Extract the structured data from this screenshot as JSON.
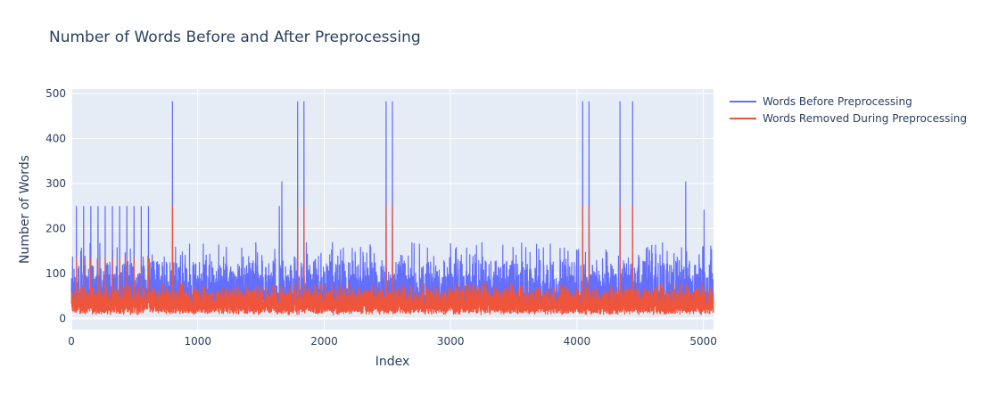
{
  "chart_data": {
    "type": "line",
    "title": "Number of Words Before and After Preprocessing",
    "xlabel": "Index",
    "ylabel": "Number of Words",
    "xlim": [
      0,
      5080
    ],
    "ylim": [
      -25,
      510
    ],
    "x_ticks": [
      0,
      1000,
      2000,
      3000,
      4000,
      5000
    ],
    "x_tick_labels": [
      "0",
      "1000",
      "2000",
      "3000",
      "4000",
      "5000"
    ],
    "y_ticks": [
      0,
      100,
      200,
      300,
      400,
      500
    ],
    "y_tick_labels": [
      "0",
      "100",
      "200",
      "300",
      "400",
      "500"
    ],
    "grid": true,
    "legend_position": "top-right",
    "n_points": 5080,
    "series": [
      {
        "name": "Words Before Preprocessing",
        "color": "#636efa",
        "typical_range": [
          0,
          170
        ],
        "spikes": [
          {
            "x": 800,
            "y": 483
          },
          {
            "x": 1645,
            "y": 250
          },
          {
            "x": 1665,
            "y": 305
          },
          {
            "x": 1790,
            "y": 483
          },
          {
            "x": 1840,
            "y": 483
          },
          {
            "x": 2490,
            "y": 483
          },
          {
            "x": 2540,
            "y": 483
          },
          {
            "x": 4045,
            "y": 483
          },
          {
            "x": 4095,
            "y": 483
          },
          {
            "x": 4340,
            "y": 483
          },
          {
            "x": 4440,
            "y": 483
          },
          {
            "x": 4860,
            "y": 305
          },
          {
            "x": 5005,
            "y": 242
          }
        ],
        "periodic_peaks": {
          "start": 40,
          "end": 610,
          "step": 57,
          "value": 250
        }
      },
      {
        "name": "Words Removed During Preprocessing",
        "color": "#ef553b",
        "typical_range": [
          0,
          80
        ],
        "spikes": [
          {
            "x": 800,
            "y": 252
          },
          {
            "x": 1790,
            "y": 252
          },
          {
            "x": 1840,
            "y": 252
          },
          {
            "x": 2490,
            "y": 252
          },
          {
            "x": 2540,
            "y": 252
          },
          {
            "x": 4045,
            "y": 252
          },
          {
            "x": 4095,
            "y": 252
          },
          {
            "x": 4340,
            "y": 252
          },
          {
            "x": 4440,
            "y": 252
          }
        ],
        "periodic_peaks": {
          "start": 40,
          "end": 610,
          "step": 57,
          "value": 135
        }
      }
    ]
  }
}
